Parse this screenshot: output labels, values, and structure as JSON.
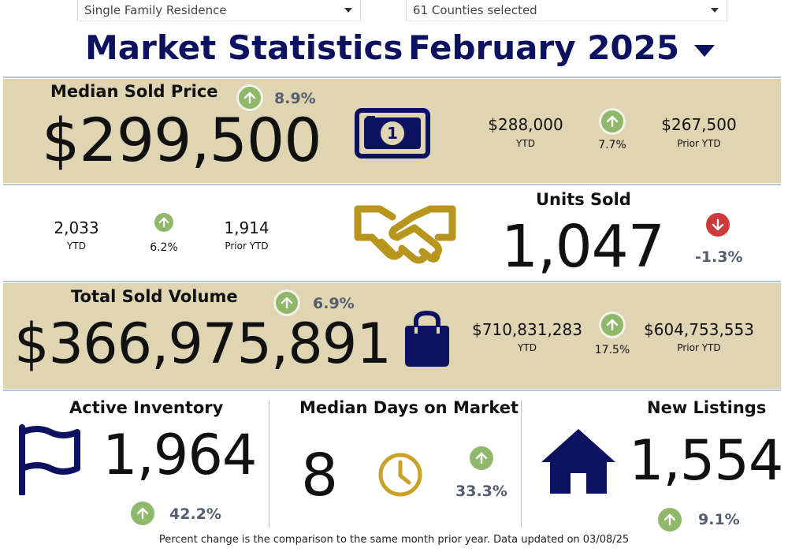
{
  "filters": {
    "property_type": "Single Family Residence",
    "counties": "61 Counties selected"
  },
  "header": {
    "title": "Market Statistics",
    "period": "February 2025"
  },
  "median_sold_price": {
    "label": "Median Sold Price",
    "value": "$299,500",
    "change": "8.9%",
    "ytd_value": "$288,000",
    "ytd_label": "YTD",
    "ytd_change": "7.7%",
    "prior_ytd_value": "$267,500",
    "prior_ytd_label": "Prior YTD",
    "icon": "money-bill-icon"
  },
  "units_sold": {
    "label": "Units Sold",
    "value": "1,047",
    "change": "-1.3%",
    "ytd_value": "2,033",
    "ytd_label": "YTD",
    "ytd_change": "6.2%",
    "prior_ytd_value": "1,914",
    "prior_ytd_label": "Prior YTD",
    "icon": "handshake-icon"
  },
  "total_sold_volume": {
    "label": "Total Sold Volume",
    "value": "$366,975,891",
    "change": "6.9%",
    "ytd_value": "$710,831,283",
    "ytd_label": "YTD",
    "ytd_change": "17.5%",
    "prior_ytd_value": "$604,753,553",
    "prior_ytd_label": "Prior YTD",
    "icon": "shopping-bag-icon"
  },
  "active_inventory": {
    "label": "Active Inventory",
    "value": "1,964",
    "change": "42.2%",
    "icon": "flag-icon"
  },
  "median_days_on_market": {
    "label": "Median Days on Market",
    "value": "8",
    "change": "33.3%",
    "icon": "clock-icon"
  },
  "new_listings": {
    "label": "New Listings",
    "value": "1,554",
    "change": "9.1%",
    "icon": "house-icon"
  },
  "footer": {
    "note": "Percent change is the comparison to the same month prior year. Data updated on 03/08/25"
  },
  "colors": {
    "navy": "#0d1260",
    "tan_band": "#dfd5b3",
    "gold": "#c9a227",
    "up_green": "#8fb86a",
    "down_red": "#cc3a3a"
  }
}
